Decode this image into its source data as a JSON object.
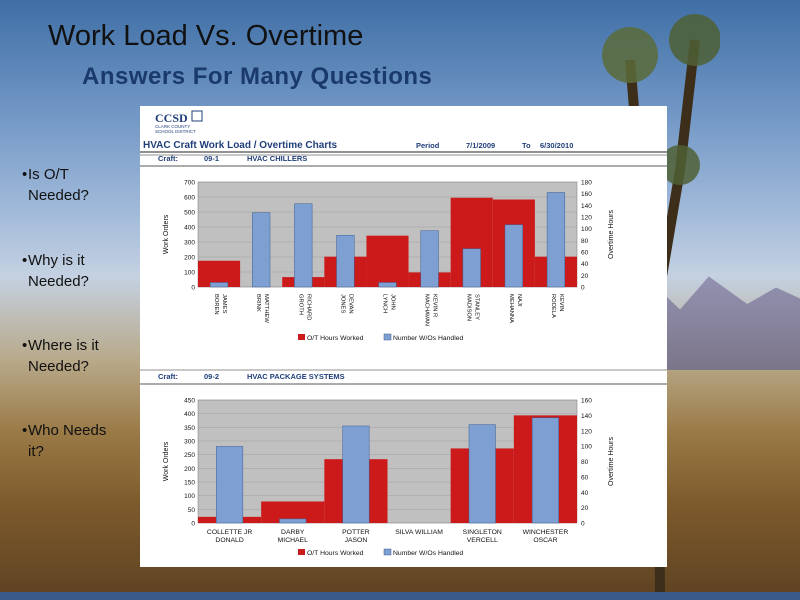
{
  "slide": {
    "title": "Work Load Vs. Overtime",
    "subtitle": "Answers For Many Questions",
    "bullets": [
      {
        "label": "Is O/T Needed?",
        "lines": [
          "Is O/T",
          "Needed?"
        ]
      },
      {
        "label": "Why is it Needed?",
        "lines": [
          "Why is it",
          "Needed?"
        ]
      },
      {
        "label": "Where is it Needed?",
        "lines": [
          "Where is it",
          "Needed?"
        ]
      },
      {
        "label": "Who Needs it?",
        "lines": [
          "Who Needs",
          "it?"
        ]
      }
    ]
  },
  "report": {
    "logo": "CCSD",
    "logo_sub": [
      "CLARK COUNTY",
      "SCHOOL DISTRICT"
    ],
    "heading": "HVAC Craft Work Load / Overtime Charts",
    "period_label": "Period",
    "period_start": "7/1/2009",
    "period_to": "To",
    "period_end": "6/30/2010"
  },
  "colors": {
    "ot_bar": "#cc1a1a",
    "wo_bar": "#7d9fd1",
    "plot_bg": "#c0c0c0"
  },
  "chart_data": [
    {
      "type": "bar",
      "craft_label": "Craft:",
      "craft_code": "09-1",
      "craft_name": "HVAC CHILLERS",
      "categories": [
        [
          "BOREN",
          "JAMES"
        ],
        [
          "BRINK",
          "MATTHEW"
        ],
        [
          "GROTH",
          "RICHARD"
        ],
        [
          "JONES",
          "DEVAN"
        ],
        [
          "LYNCH",
          "JOHN"
        ],
        [
          "MACHAVAN",
          "KEVIN R"
        ],
        [
          "MADISON",
          "STANLEY"
        ],
        [
          "MEHANNA",
          "NAJI"
        ],
        [
          "RODELA",
          "KEVIN"
        ]
      ],
      "ylabel": "Work Orders",
      "y2label": "Overtime Hours",
      "ylim": [
        0,
        700
      ],
      "yticks": [
        0,
        100,
        200,
        300,
        400,
        500,
        600,
        700
      ],
      "y2lim": [
        0,
        180
      ],
      "y2ticks": [
        0,
        20,
        40,
        60,
        80,
        100,
        120,
        140,
        160,
        180
      ],
      "series": [
        {
          "name": "O/T Hours Worked",
          "axis": "right",
          "step": true,
          "values": [
            45,
            0,
            17,
            52,
            88,
            25,
            153,
            150,
            52
          ]
        },
        {
          "name": "Number W/Os Handled",
          "axis": "left",
          "values": [
            30,
            495,
            555,
            345,
            30,
            375,
            255,
            415,
            630
          ]
        }
      ],
      "legend": "bottom"
    },
    {
      "type": "bar",
      "craft_label": "Craft:",
      "craft_code": "09-2",
      "craft_name": "HVAC PACKAGE SYSTEMS",
      "categories": [
        [
          "COLLETTE JR",
          "DONALD"
        ],
        [
          "DARBY",
          "MICHAEL"
        ],
        [
          "POTTER",
          "JASON"
        ],
        [
          "SILVA WILLIAM",
          ""
        ],
        [
          "SINGLETON",
          "VERCELL"
        ],
        [
          "WINCHESTER",
          "OSCAR"
        ]
      ],
      "ylabel": "Work Orders",
      "y2label": "Overtime Hours",
      "ylim": [
        0,
        450
      ],
      "yticks": [
        0,
        50,
        100,
        150,
        200,
        250,
        300,
        350,
        400,
        450
      ],
      "y2lim": [
        0,
        160
      ],
      "y2ticks": [
        0,
        20,
        40,
        60,
        80,
        100,
        120,
        140,
        160
      ],
      "series": [
        {
          "name": "O/T Hours Worked",
          "axis": "right",
          "step": true,
          "values": [
            8,
            28,
            83,
            0,
            97,
            140
          ]
        },
        {
          "name": "Number W/Os Handled",
          "axis": "left",
          "values": [
            280,
            15,
            355,
            0,
            360,
            385
          ]
        }
      ],
      "legend": "bottom"
    }
  ]
}
